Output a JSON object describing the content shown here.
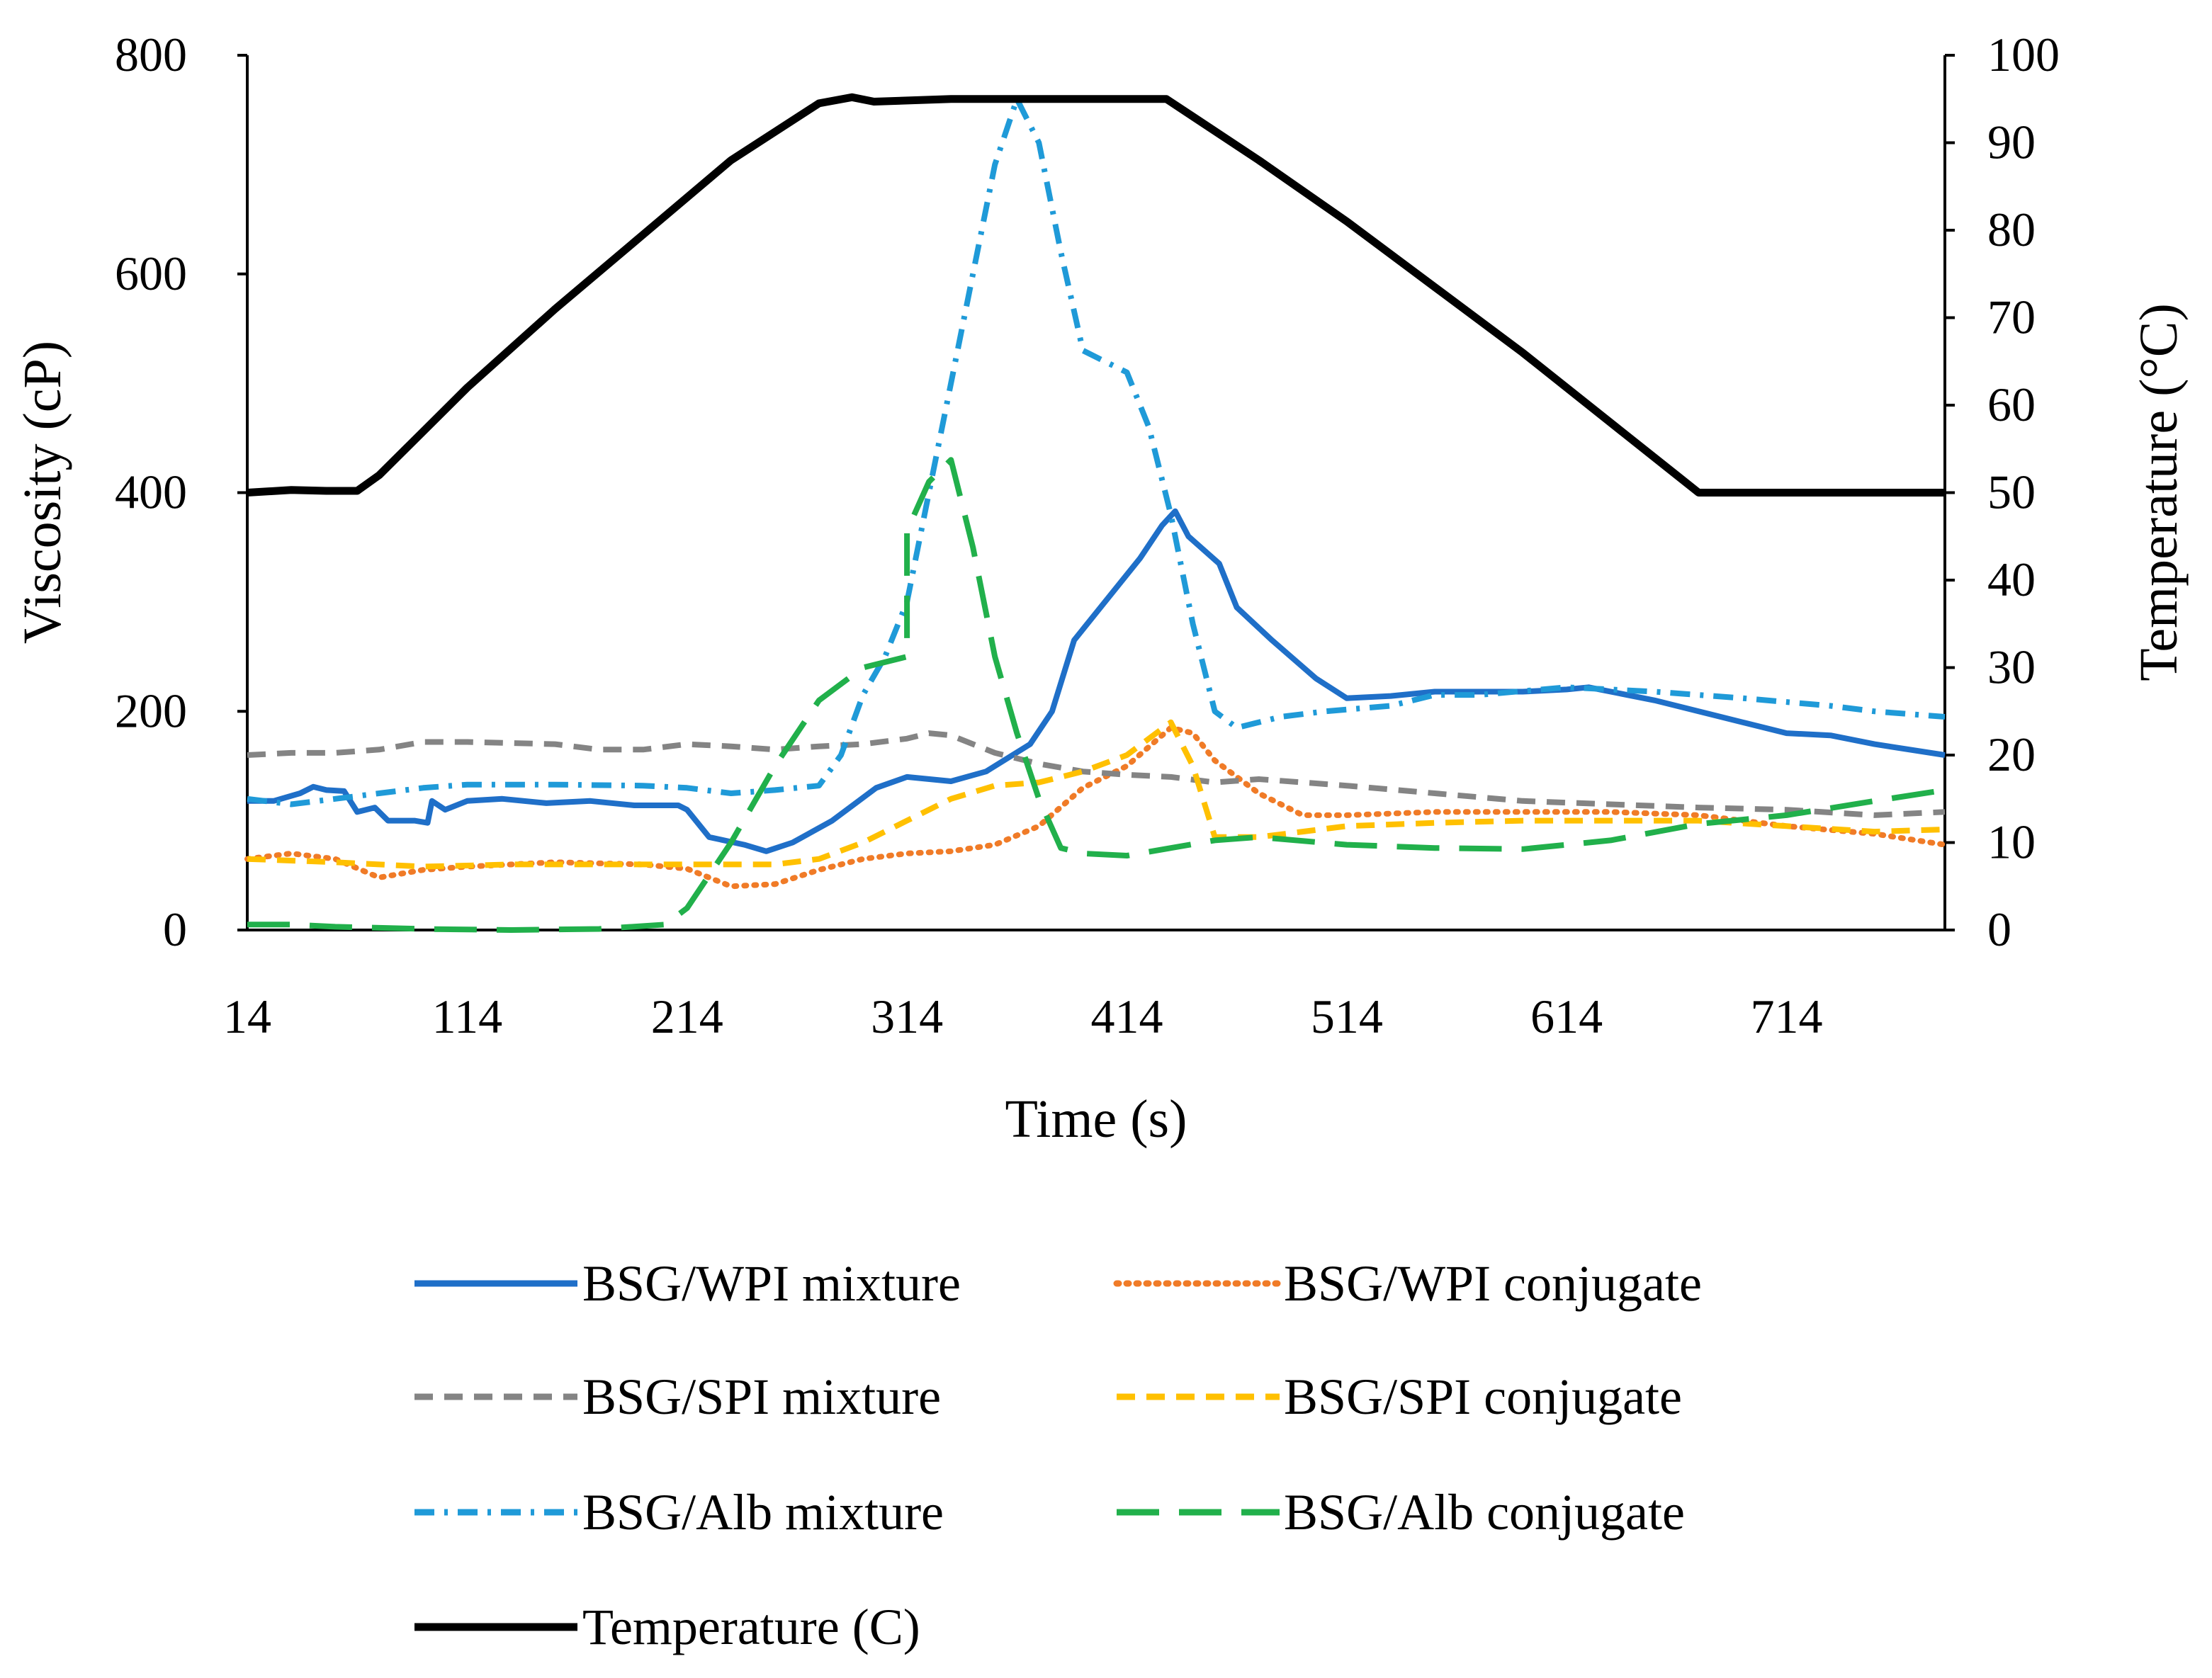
{
  "chart_data": {
    "type": "line",
    "xlabel": "Time (s)",
    "ylabel": "Viscosity (cP)",
    "y2label": "Temperature (°C)",
    "x_ticks": [
      14,
      114,
      214,
      314,
      414,
      514,
      614,
      714
    ],
    "xlim": [
      14,
      786
    ],
    "ylim": [
      0,
      800
    ],
    "y_ticks": [
      0,
      200,
      400,
      600,
      800
    ],
    "y2lim": [
      0,
      100
    ],
    "y2_ticks": [
      0,
      10,
      20,
      30,
      40,
      50,
      60,
      70,
      80,
      90,
      100
    ],
    "grid": false,
    "legend_position": "bottom",
    "series": [
      {
        "name": "BSG/WPI mixture",
        "axis": "left",
        "color": "#1f6fc8",
        "style": "solid",
        "points": [
          [
            14,
            118
          ],
          [
            26,
            118
          ],
          [
            38,
            125
          ],
          [
            44,
            131
          ],
          [
            50,
            128
          ],
          [
            58,
            127
          ],
          [
            64,
            108
          ],
          [
            72,
            112
          ],
          [
            78,
            100
          ],
          [
            90,
            100
          ],
          [
            96,
            98
          ],
          [
            98,
            118
          ],
          [
            104,
            110
          ],
          [
            114,
            118
          ],
          [
            130,
            120
          ],
          [
            150,
            116
          ],
          [
            170,
            118
          ],
          [
            190,
            114
          ],
          [
            210,
            114
          ],
          [
            214,
            110
          ],
          [
            224,
            85
          ],
          [
            240,
            78
          ],
          [
            250,
            72
          ],
          [
            262,
            80
          ],
          [
            280,
            100
          ],
          [
            300,
            130
          ],
          [
            314,
            140
          ],
          [
            334,
            136
          ],
          [
            350,
            145
          ],
          [
            370,
            170
          ],
          [
            380,
            200
          ],
          [
            390,
            265
          ],
          [
            404,
            300
          ],
          [
            420,
            340
          ],
          [
            430,
            370
          ],
          [
            436,
            383
          ],
          [
            442,
            360
          ],
          [
            456,
            335
          ],
          [
            464,
            295
          ],
          [
            480,
            265
          ],
          [
            500,
            230
          ],
          [
            514,
            212
          ],
          [
            534,
            214
          ],
          [
            554,
            218
          ],
          [
            574,
            218
          ],
          [
            594,
            218
          ],
          [
            614,
            220
          ],
          [
            624,
            222
          ],
          [
            654,
            210
          ],
          [
            674,
            200
          ],
          [
            694,
            190
          ],
          [
            714,
            180
          ],
          [
            734,
            178
          ],
          [
            754,
            170
          ],
          [
            786,
            160
          ]
        ]
      },
      {
        "name": "BSG/WPI conjugate",
        "axis": "left",
        "color": "#f07b27",
        "style": "dotted",
        "points": [
          [
            14,
            65
          ],
          [
            34,
            70
          ],
          [
            54,
            65
          ],
          [
            74,
            48
          ],
          [
            94,
            55
          ],
          [
            114,
            58
          ],
          [
            154,
            62
          ],
          [
            194,
            60
          ],
          [
            214,
            56
          ],
          [
            234,
            40
          ],
          [
            254,
            42
          ],
          [
            274,
            55
          ],
          [
            294,
            65
          ],
          [
            314,
            70
          ],
          [
            334,
            72
          ],
          [
            354,
            78
          ],
          [
            374,
            95
          ],
          [
            394,
            130
          ],
          [
            414,
            150
          ],
          [
            434,
            185
          ],
          [
            444,
            180
          ],
          [
            454,
            155
          ],
          [
            474,
            125
          ],
          [
            494,
            105
          ],
          [
            514,
            105
          ],
          [
            554,
            108
          ],
          [
            594,
            108
          ],
          [
            634,
            108
          ],
          [
            674,
            105
          ],
          [
            714,
            95
          ],
          [
            754,
            88
          ],
          [
            786,
            78
          ]
        ]
      },
      {
        "name": "BSG/SPI mixture",
        "axis": "left",
        "color": "#848484",
        "style": "dashed",
        "points": [
          [
            14,
            160
          ],
          [
            34,
            162
          ],
          [
            54,
            162
          ],
          [
            74,
            165
          ],
          [
            94,
            172
          ],
          [
            114,
            172
          ],
          [
            154,
            170
          ],
          [
            174,
            165
          ],
          [
            194,
            165
          ],
          [
            214,
            170
          ],
          [
            234,
            168
          ],
          [
            254,
            165
          ],
          [
            274,
            168
          ],
          [
            294,
            170
          ],
          [
            314,
            175
          ],
          [
            324,
            180
          ],
          [
            334,
            178
          ],
          [
            354,
            162
          ],
          [
            374,
            152
          ],
          [
            394,
            145
          ],
          [
            414,
            142
          ],
          [
            434,
            140
          ],
          [
            454,
            135
          ],
          [
            474,
            138
          ],
          [
            494,
            135
          ],
          [
            514,
            132
          ],
          [
            554,
            125
          ],
          [
            594,
            118
          ],
          [
            634,
            115
          ],
          [
            674,
            112
          ],
          [
            714,
            110
          ],
          [
            754,
            105
          ],
          [
            786,
            108
          ]
        ]
      },
      {
        "name": "BSG/SPI conjugate",
        "axis": "left",
        "color": "#ffc000",
        "style": "dashed",
        "points": [
          [
            14,
            65
          ],
          [
            54,
            62
          ],
          [
            94,
            58
          ],
          [
            134,
            60
          ],
          [
            174,
            60
          ],
          [
            214,
            60
          ],
          [
            254,
            60
          ],
          [
            274,
            65
          ],
          [
            294,
            80
          ],
          [
            314,
            100
          ],
          [
            334,
            120
          ],
          [
            354,
            132
          ],
          [
            374,
            135
          ],
          [
            394,
            145
          ],
          [
            414,
            160
          ],
          [
            424,
            175
          ],
          [
            434,
            190
          ],
          [
            444,
            150
          ],
          [
            454,
            85
          ],
          [
            474,
            85
          ],
          [
            494,
            90
          ],
          [
            514,
            95
          ],
          [
            554,
            98
          ],
          [
            594,
            100
          ],
          [
            634,
            100
          ],
          [
            674,
            100
          ],
          [
            714,
            95
          ],
          [
            754,
            90
          ],
          [
            786,
            92
          ]
        ]
      },
      {
        "name": "BSG/Alb mixture",
        "axis": "left",
        "color": "#1f9ad8",
        "style": "dashdot",
        "points": [
          [
            14,
            120
          ],
          [
            34,
            115
          ],
          [
            54,
            120
          ],
          [
            74,
            125
          ],
          [
            94,
            130
          ],
          [
            114,
            133
          ],
          [
            154,
            133
          ],
          [
            194,
            132
          ],
          [
            214,
            130
          ],
          [
            234,
            125
          ],
          [
            254,
            128
          ],
          [
            274,
            132
          ],
          [
            284,
            160
          ],
          [
            294,
            215
          ],
          [
            304,
            250
          ],
          [
            314,
            300
          ],
          [
            324,
            400
          ],
          [
            334,
            500
          ],
          [
            344,
            600
          ],
          [
            354,
            700
          ],
          [
            364,
            760
          ],
          [
            374,
            720
          ],
          [
            384,
            620
          ],
          [
            394,
            530
          ],
          [
            404,
            520
          ],
          [
            414,
            510
          ],
          [
            424,
            460
          ],
          [
            434,
            380
          ],
          [
            444,
            280
          ],
          [
            454,
            200
          ],
          [
            464,
            185
          ],
          [
            484,
            195
          ],
          [
            504,
            200
          ],
          [
            534,
            205
          ],
          [
            554,
            215
          ],
          [
            574,
            215
          ],
          [
            614,
            222
          ],
          [
            654,
            218
          ],
          [
            694,
            212
          ],
          [
            734,
            205
          ],
          [
            754,
            200
          ],
          [
            786,
            195
          ]
        ]
      },
      {
        "name": "BSG/Alb conjugate",
        "axis": "left",
        "color": "#21b04b",
        "style": "longdash",
        "points": [
          [
            14,
            5
          ],
          [
            34,
            5
          ],
          [
            54,
            3
          ],
          [
            74,
            2
          ],
          [
            94,
            1
          ],
          [
            134,
            0
          ],
          [
            174,
            1
          ],
          [
            204,
            5
          ],
          [
            214,
            20
          ],
          [
            234,
            80
          ],
          [
            254,
            150
          ],
          [
            274,
            210
          ],
          [
            294,
            240
          ],
          [
            314,
            250
          ],
          [
            314,
            365
          ],
          [
            324,
            410
          ],
          [
            334,
            430
          ],
          [
            344,
            350
          ],
          [
            354,
            250
          ],
          [
            364,
            180
          ],
          [
            374,
            120
          ],
          [
            384,
            75
          ],
          [
            394,
            70
          ],
          [
            414,
            68
          ],
          [
            434,
            75
          ],
          [
            454,
            82
          ],
          [
            474,
            85
          ],
          [
            514,
            78
          ],
          [
            554,
            75
          ],
          [
            594,
            74
          ],
          [
            634,
            82
          ],
          [
            674,
            97
          ],
          [
            714,
            105
          ],
          [
            754,
            118
          ],
          [
            786,
            128
          ]
        ]
      },
      {
        "name": "Temperature (C)",
        "axis": "right",
        "color": "#000000",
        "style": "solid",
        "points": [
          [
            14,
            50
          ],
          [
            34,
            50.3
          ],
          [
            50,
            50.2
          ],
          [
            64,
            50.2
          ],
          [
            74,
            52
          ],
          [
            94,
            57
          ],
          [
            114,
            62
          ],
          [
            154,
            71
          ],
          [
            194,
            79.5
          ],
          [
            234,
            88
          ],
          [
            274,
            94.5
          ],
          [
            289,
            95.2
          ],
          [
            299,
            94.7
          ],
          [
            334,
            95
          ],
          [
            374,
            95
          ],
          [
            414,
            95
          ],
          [
            432,
            95
          ],
          [
            444,
            93
          ],
          [
            474,
            88
          ],
          [
            514,
            81
          ],
          [
            554,
            73.5
          ],
          [
            594,
            66
          ],
          [
            634,
            58
          ],
          [
            664,
            52
          ],
          [
            674,
            50
          ],
          [
            714,
            50
          ],
          [
            754,
            50
          ],
          [
            786,
            50
          ]
        ]
      }
    ]
  }
}
